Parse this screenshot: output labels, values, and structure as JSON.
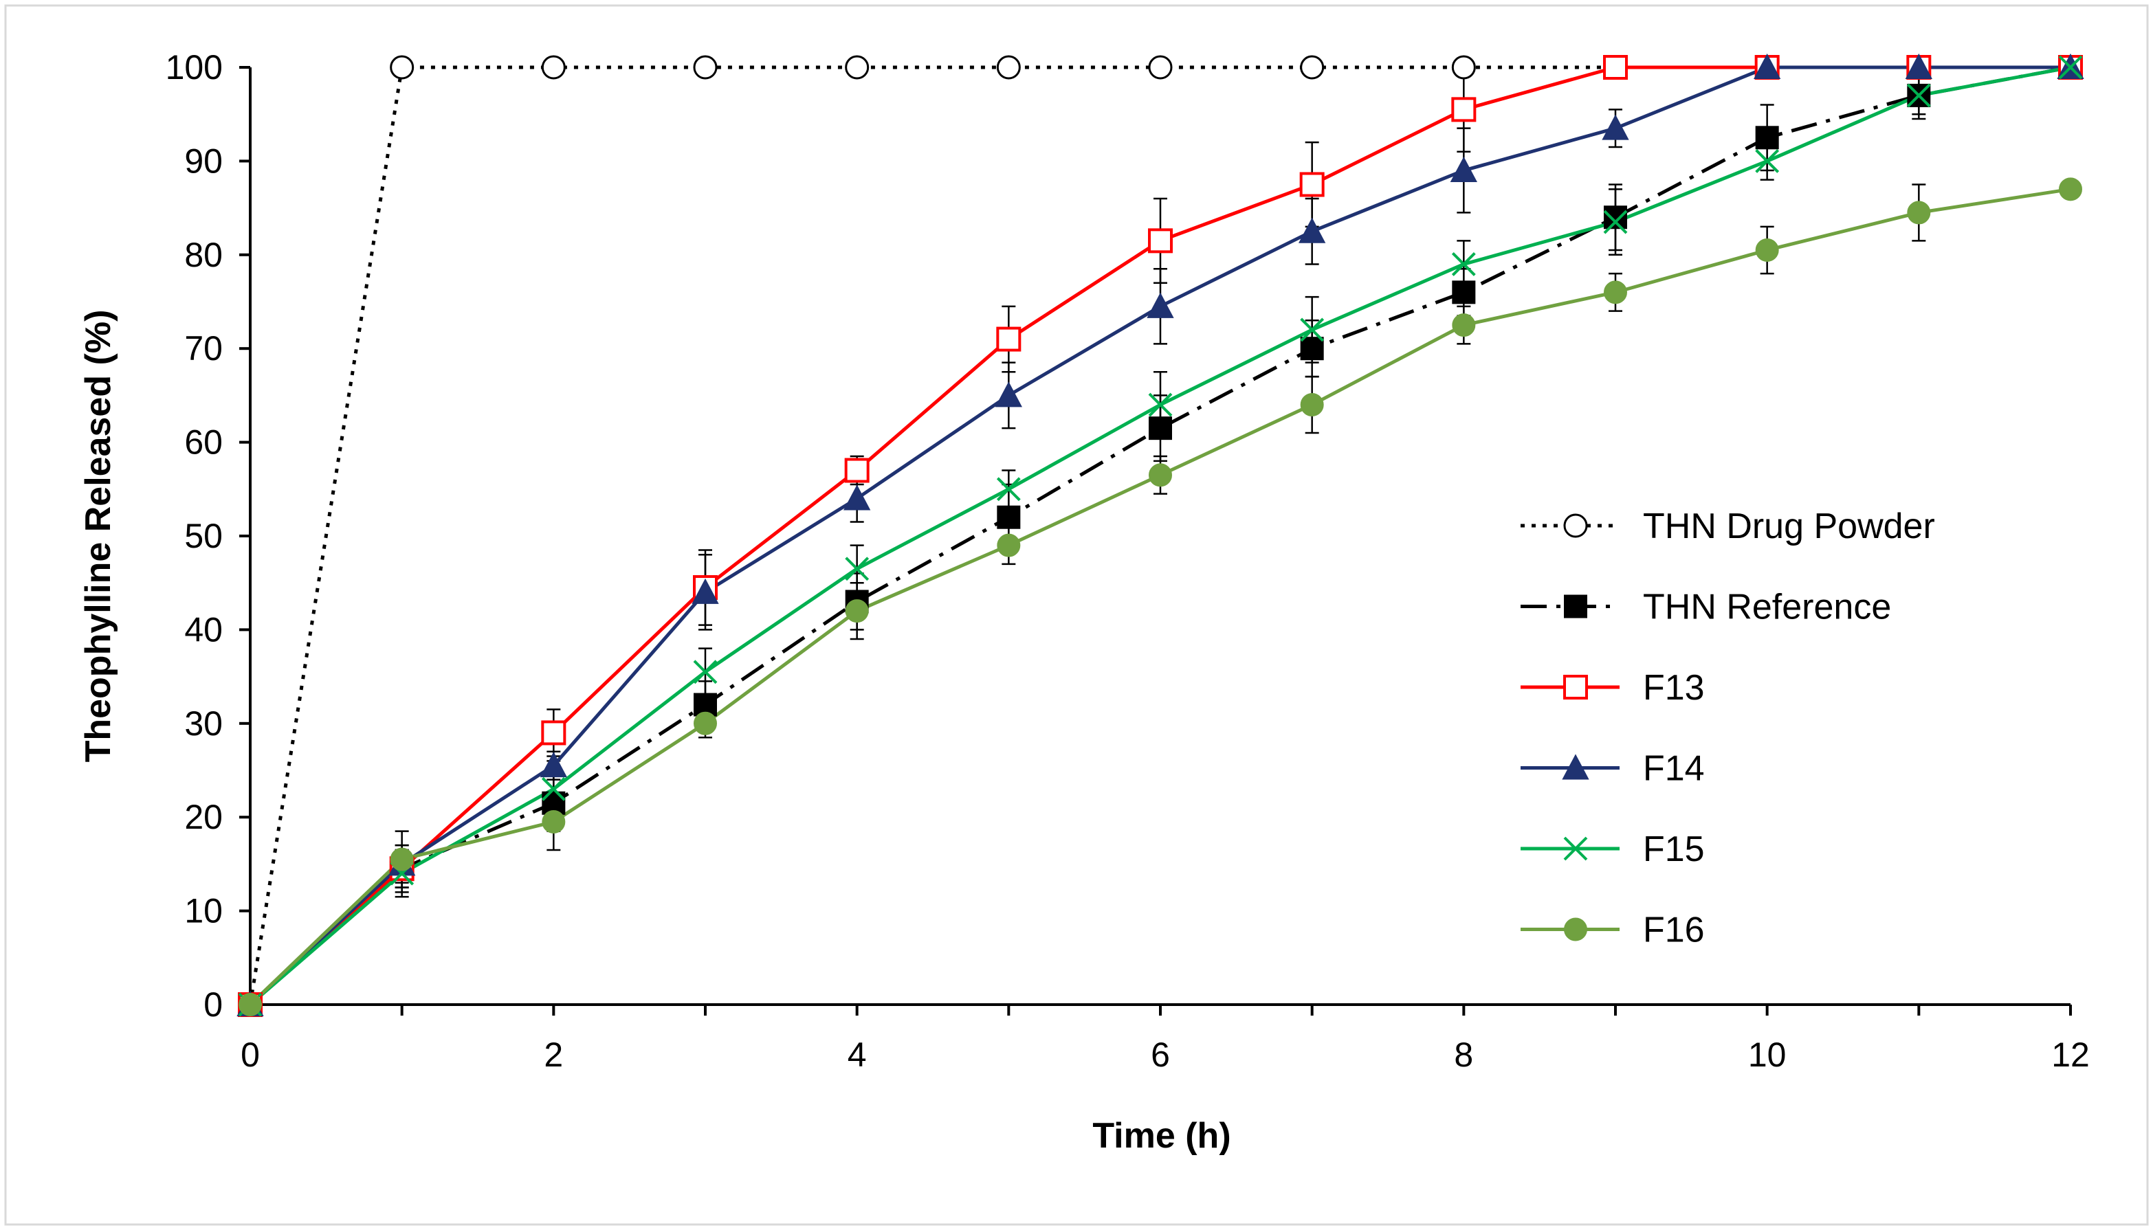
{
  "chart_data": {
    "type": "line",
    "title": "",
    "xlabel": "Time (h)",
    "ylabel": "Theophylline Released (%)",
    "xlim": [
      0,
      12
    ],
    "ylim": [
      0,
      100
    ],
    "xticks": [
      "0",
      "2",
      "4",
      "6",
      "8",
      "10",
      "12"
    ],
    "yticks": [
      "0",
      "10",
      "20",
      "30",
      "40",
      "50",
      "60",
      "70",
      "80",
      "90",
      "100"
    ],
    "grid": false,
    "legend_position": "right",
    "series": [
      {
        "name": "THN Drug Powder",
        "color": "#000000",
        "line_style": "dotted",
        "marker": "open-circle",
        "x": [
          0,
          1,
          2,
          3,
          4,
          5,
          6,
          7,
          8,
          9,
          10,
          11,
          12
        ],
        "y": [
          0,
          100,
          100,
          100,
          100,
          100,
          100,
          100,
          100,
          100,
          100,
          100,
          100
        ],
        "error": [
          0,
          0,
          0,
          0,
          0,
          0,
          0,
          0,
          0,
          0,
          0,
          0,
          0
        ]
      },
      {
        "name": "THN Reference",
        "color": "#000000",
        "line_style": "dash-dot",
        "marker": "filled-square",
        "x": [
          0,
          1,
          2,
          3,
          4,
          5,
          6,
          7,
          8,
          9,
          10,
          11,
          12
        ],
        "y": [
          0,
          14.5,
          21.5,
          32,
          43,
          52,
          61.5,
          70,
          76,
          84,
          92.5,
          97,
          100
        ],
        "error": [
          0,
          2.5,
          3,
          2.5,
          3,
          3.5,
          3.5,
          3,
          2.5,
          3.5,
          3.5,
          2.5,
          0
        ]
      },
      {
        "name": "F13",
        "color": "#ff0000",
        "line_style": "solid",
        "marker": "open-square",
        "x": [
          0,
          1,
          2,
          3,
          4,
          5,
          6,
          7,
          8,
          9,
          10,
          11,
          12
        ],
        "y": [
          0,
          14.5,
          29,
          44.5,
          57,
          71,
          81.5,
          87.5,
          95.5,
          100,
          100,
          100,
          100
        ],
        "error": [
          0,
          2,
          2.5,
          4,
          1.5,
          3.5,
          4.5,
          4.5,
          4.5,
          0,
          0,
          0,
          0
        ]
      },
      {
        "name": "F14",
        "color": "#1f3271",
        "line_style": "solid",
        "marker": "filled-triangle",
        "x": [
          0,
          1,
          2,
          3,
          4,
          5,
          6,
          7,
          8,
          9,
          10,
          11,
          12
        ],
        "y": [
          0,
          15,
          25.5,
          44,
          54,
          65,
          74.5,
          82.5,
          89,
          93.5,
          100,
          100,
          100
        ],
        "error": [
          0,
          2,
          1.5,
          4,
          2.5,
          3.5,
          4,
          3.5,
          4.5,
          2,
          0,
          0,
          0
        ]
      },
      {
        "name": "F15",
        "color": "#00b050",
        "line_style": "solid",
        "marker": "x",
        "x": [
          0,
          1,
          2,
          3,
          4,
          5,
          6,
          7,
          8,
          9,
          10,
          11,
          12
        ],
        "y": [
          0,
          14,
          23,
          35.5,
          46.5,
          55,
          64,
          72,
          79,
          83.5,
          90,
          97,
          100
        ],
        "error": [
          0,
          2.5,
          3,
          2.5,
          2.5,
          2,
          3.5,
          3.5,
          2.5,
          3.5,
          2,
          2,
          0
        ]
      },
      {
        "name": "F16",
        "color": "#70a140",
        "line_style": "solid",
        "marker": "filled-circle",
        "x": [
          0,
          1,
          2,
          3,
          4,
          5,
          6,
          7,
          8,
          9,
          10,
          11,
          12
        ],
        "y": [
          0,
          15.5,
          19.5,
          30,
          42,
          49,
          56.5,
          64,
          72.5,
          76,
          80.5,
          84.5,
          87
        ],
        "error": [
          0,
          3,
          3,
          1.5,
          3,
          2,
          2,
          3,
          2,
          2,
          2.5,
          3,
          0
        ]
      }
    ]
  }
}
